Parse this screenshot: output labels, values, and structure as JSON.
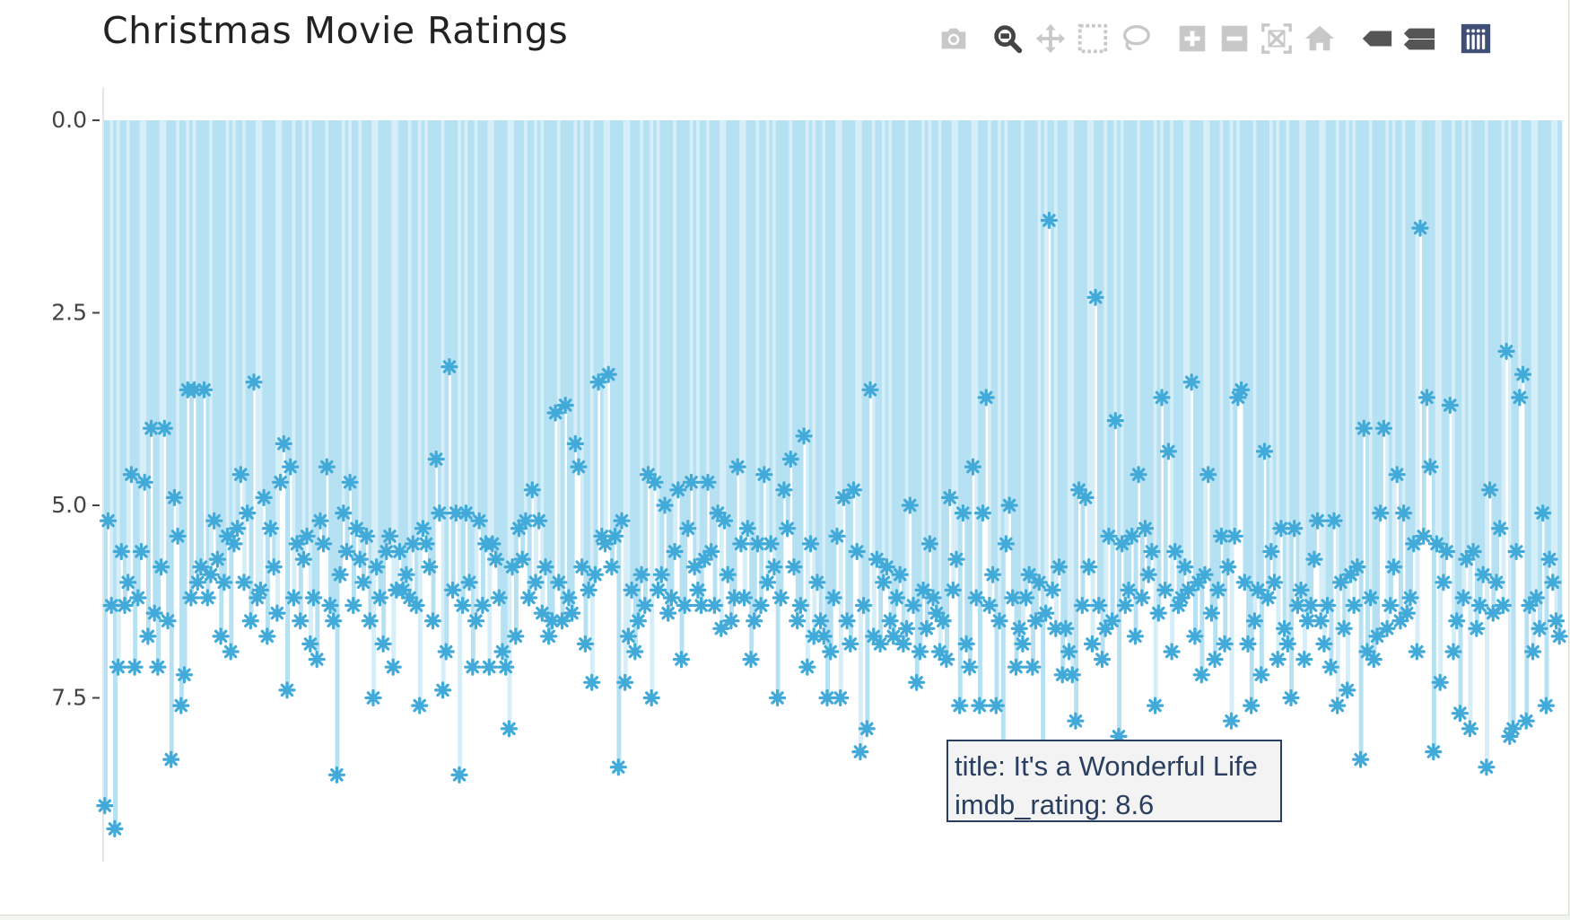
{
  "chart_data": {
    "type": "scatter",
    "title": "Christmas Movie Ratings",
    "xlabel": "",
    "ylabel": "",
    "y_axis_reversed": true,
    "ylim": [
      0,
      9.6
    ],
    "yticks": [
      "0.0",
      "2.5",
      "5.0",
      "7.5"
    ],
    "ytick_values": [
      0,
      2.5,
      5,
      7.5
    ],
    "marker": "asterisk",
    "bar_from_zero": true,
    "grid": false,
    "series": [
      {
        "values": [
          8.9,
          5.2,
          6.3,
          9.2,
          7.1,
          5.6,
          6.3,
          6.0,
          4.6,
          7.1,
          6.2,
          5.6,
          4.7,
          6.7,
          4.0,
          6.4,
          7.1,
          5.8,
          4.0,
          6.5,
          8.3,
          4.9,
          5.4,
          7.6,
          7.2,
          3.5,
          6.2,
          3.5,
          6.0,
          5.8,
          3.5,
          6.2,
          5.9,
          5.2,
          5.7,
          6.7,
          6.0,
          5.4,
          6.9,
          5.5,
          5.3,
          4.6,
          6.0,
          5.1,
          6.5,
          3.4,
          6.2,
          6.1,
          4.9,
          6.7,
          5.3,
          5.8,
          6.4,
          4.7,
          4.2,
          7.4,
          4.5,
          6.2,
          5.5,
          6.5,
          5.7,
          5.4,
          6.8,
          6.2,
          7.0,
          5.2,
          5.5,
          4.5,
          6.3,
          6.5,
          8.5,
          5.9,
          5.1,
          5.6,
          4.7,
          6.3,
          5.3,
          5.7,
          6.0,
          5.4,
          6.5,
          7.5,
          5.8,
          6.2,
          6.8,
          5.6,
          5.4,
          7.1,
          6.1,
          5.6,
          6.1,
          5.9,
          6.2,
          5.5,
          6.3,
          7.6,
          5.3,
          5.5,
          5.8,
          6.5,
          4.4,
          5.1,
          7.4,
          6.9,
          3.2,
          6.1,
          5.1,
          8.5,
          6.3,
          5.1,
          6.0,
          7.1,
          6.5,
          5.2,
          6.3,
          5.5,
          7.1,
          5.5,
          5.7,
          6.2,
          6.9,
          7.1,
          7.9,
          5.8,
          6.7,
          5.3,
          5.7,
          5.2,
          6.2,
          4.8,
          6.0,
          5.2,
          6.4,
          5.8,
          6.7,
          6.5,
          3.8,
          6.0,
          6.5,
          3.7,
          6.2,
          6.4,
          4.2,
          4.5,
          5.8,
          6.8,
          6.1,
          7.3,
          5.9,
          3.4,
          5.4,
          5.5,
          3.3,
          5.8,
          5.4,
          8.4,
          5.2,
          7.3,
          6.7,
          6.1,
          6.9,
          6.5,
          5.9,
          6.3,
          4.6,
          7.5,
          4.7,
          6.1,
          5.9,
          5.0,
          6.4,
          6.2,
          5.6,
          4.8,
          7.0,
          6.3,
          5.3,
          4.7,
          5.8,
          6.1,
          6.3,
          5.7,
          4.7,
          5.6,
          6.3,
          5.1,
          6.6,
          5.2,
          5.9,
          6.5,
          6.2,
          4.5,
          5.5,
          6.2,
          5.3,
          7.0,
          6.5,
          5.5,
          6.3,
          4.6,
          6.0,
          5.5,
          5.8,
          7.5,
          6.2,
          4.8,
          5.3,
          4.4,
          5.8,
          6.5,
          6.3,
          4.1,
          7.1,
          5.5,
          6.7,
          6.0,
          6.5,
          6.7,
          7.5,
          6.9,
          6.2,
          5.4,
          7.5,
          4.9,
          6.5,
          6.8,
          4.8,
          5.6,
          8.2,
          6.3,
          7.9,
          3.5,
          6.7,
          5.7,
          6.8,
          6.0,
          5.8,
          6.5,
          6.7,
          6.2,
          5.9,
          6.8,
          6.6,
          5.0,
          6.3,
          7.3,
          6.9,
          6.1,
          6.6,
          5.5,
          6.2,
          6.4,
          6.9,
          6.5,
          7.0,
          4.9,
          6.1,
          5.7,
          7.6,
          5.1,
          6.8,
          7.1,
          4.5,
          6.2,
          7.6,
          5.1,
          3.6,
          6.3,
          5.9,
          7.6,
          6.5,
          8.3,
          5.5,
          5.0,
          6.2,
          7.1,
          6.6,
          6.8,
          6.2,
          5.9,
          7.1,
          6.5,
          6.0,
          8.6,
          6.4,
          1.3,
          6.1,
          6.6,
          5.8,
          7.2,
          6.6,
          6.9,
          7.2,
          7.8,
          4.8,
          6.3,
          4.9,
          5.8,
          6.8,
          2.3,
          6.3,
          7.0,
          6.6,
          5.4,
          6.5,
          3.9,
          8.0,
          5.5,
          6.3,
          6.1,
          5.4,
          6.7,
          4.6,
          6.2,
          5.3,
          5.9,
          5.6,
          7.6,
          6.4,
          3.6,
          6.1,
          4.3,
          6.9,
          5.6,
          6.3,
          6.2,
          5.8,
          6.1,
          3.4,
          6.7,
          6.0,
          7.2,
          5.9,
          4.6,
          6.4,
          7.0,
          6.1,
          5.4,
          6.8,
          5.8,
          7.8,
          5.4,
          3.6,
          3.5,
          6.0,
          6.8,
          7.6,
          6.5,
          6.1,
          7.2,
          4.3,
          6.2,
          5.6,
          6.0,
          7.0,
          5.3,
          6.6,
          6.8,
          7.5,
          5.3,
          6.3,
          6.1,
          7.0,
          6.5,
          6.3,
          5.7,
          5.2,
          6.5,
          6.8,
          6.3,
          7.1,
          5.2,
          7.6,
          6.0,
          6.6,
          7.4,
          5.9,
          6.3,
          5.8,
          8.3,
          4.0,
          6.9,
          6.2,
          7.0,
          6.7,
          5.1,
          4.0,
          6.6,
          6.3,
          5.8,
          4.6,
          6.5,
          5.1,
          6.4,
          6.2,
          5.5,
          6.9,
          1.4,
          5.4,
          3.6,
          4.5,
          8.2,
          5.5,
          7.3,
          6.0,
          5.6,
          3.7,
          6.9,
          6.5,
          7.7,
          6.2,
          5.7,
          7.9,
          5.6,
          6.6,
          6.3,
          5.9,
          8.4,
          4.8,
          6.4,
          6.0,
          5.3,
          6.3,
          3.0,
          8.0,
          7.9,
          5.6,
          3.6,
          3.3,
          7.8,
          6.3,
          6.9,
          6.2,
          6.6,
          5.1,
          7.6,
          5.7,
          6.0,
          6.5,
          6.7
        ]
      }
    ],
    "colors": {
      "bar": "#b5e1f2",
      "bar_light": "#d5eef8",
      "marker": "#42aad8"
    },
    "hover": {
      "title": "It's a Wonderful Life",
      "imdb_rating": 8.6,
      "line1": "title: It's a Wonderful Life",
      "line2": "imdb_rating: 8.6"
    }
  },
  "modebar": {
    "buttons": [
      {
        "name": "camera-icon",
        "title": "Download plot as a png"
      },
      {
        "name": "zoom-icon",
        "title": "Zoom"
      },
      {
        "name": "pan-icon",
        "title": "Pan"
      },
      {
        "name": "box-select-icon",
        "title": "Box Select"
      },
      {
        "name": "lasso-select-icon",
        "title": "Lasso Select"
      },
      {
        "name": "zoom-in-icon",
        "title": "Zoom in"
      },
      {
        "name": "zoom-out-icon",
        "title": "Zoom out"
      },
      {
        "name": "autoscale-icon",
        "title": "Autoscale"
      },
      {
        "name": "reset-axes-icon",
        "title": "Reset axes"
      },
      {
        "name": "spike-lines-icon",
        "title": "Toggle Spike Lines"
      },
      {
        "name": "hover-compare-icon",
        "title": "Compare data on hover"
      },
      {
        "name": "plotly-logo-icon",
        "title": "Produced with Plotly"
      }
    ]
  }
}
